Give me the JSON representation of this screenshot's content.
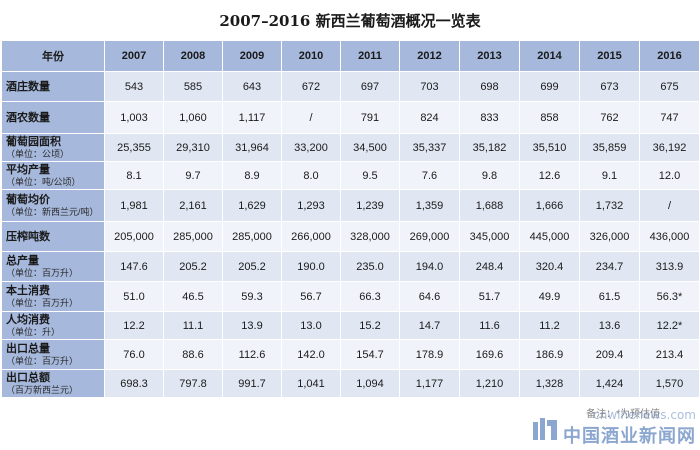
{
  "title": "2007–2016 新西兰葡萄酒概况一览表",
  "header": {
    "corner": "年份",
    "years": [
      "2007",
      "2008",
      "2009",
      "2010",
      "2011",
      "2012",
      "2013",
      "2014",
      "2015",
      "2016"
    ]
  },
  "rows": [
    {
      "label": "酒庄数量",
      "sub": "",
      "values": [
        "543",
        "585",
        "643",
        "672",
        "697",
        "703",
        "698",
        "699",
        "673",
        "675"
      ]
    },
    {
      "label": "酒农数量",
      "sub": "",
      "values": [
        "1,003",
        "1,060",
        "1,117",
        "/",
        "791",
        "824",
        "833",
        "858",
        "762",
        "747"
      ]
    },
    {
      "label": "葡萄园面积",
      "sub": "（单位：公顷）",
      "values": [
        "25,355",
        "29,310",
        "31,964",
        "33,200",
        "34,500",
        "35,337",
        "35,182",
        "35,510",
        "35,859",
        "36,192"
      ]
    },
    {
      "label": "平均产量",
      "sub": "（单位：吨/公顷）",
      "values": [
        "8.1",
        "9.7",
        "8.9",
        "8.0",
        "9.5",
        "7.6",
        "9.8",
        "12.6",
        "9.1",
        "12.0"
      ]
    },
    {
      "label": "葡萄均价",
      "sub": "（单位：新西兰元/吨）",
      "values": [
        "1,981",
        "2,161",
        "1,629",
        "1,293",
        "1,239",
        "1,359",
        "1,688",
        "1,666",
        "1,732",
        "/"
      ]
    },
    {
      "label": "压榨吨数",
      "sub": "",
      "values": [
        "205,000",
        "285,000",
        "285,000",
        "266,000",
        "328,000",
        "269,000",
        "345,000",
        "445,000",
        "326,000",
        "436,000"
      ]
    },
    {
      "label": "总产量",
      "sub": "（单位：百万升）",
      "values": [
        "147.6",
        "205.2",
        "205.2",
        "190.0",
        "235.0",
        "194.0",
        "248.4",
        "320.4",
        "234.7",
        "313.9"
      ]
    },
    {
      "label": "本土消费",
      "sub": "（单位：百万升）",
      "values": [
        "51.0",
        "46.5",
        "59.3",
        "56.7",
        "66.3",
        "64.6",
        "51.7",
        "49.9",
        "61.5",
        "56.3*"
      ]
    },
    {
      "label": "人均消费",
      "sub": "（单位：升）",
      "values": [
        "12.2",
        "11.1",
        "13.9",
        "13.0",
        "15.2",
        "14.7",
        "11.6",
        "11.2",
        "13.6",
        "12.2*"
      ]
    },
    {
      "label": "出口总量",
      "sub": "（单位：百万升）",
      "values": [
        "76.0",
        "88.6",
        "112.6",
        "142.0",
        "154.7",
        "178.9",
        "169.6",
        "186.9",
        "209.4",
        "213.4"
      ]
    },
    {
      "label": "出口总额",
      "sub": "（百万新西兰元）",
      "values": [
        "698.3",
        "797.8",
        "991.7",
        "1,041",
        "1,094",
        "1,177",
        "1,210",
        "1,328",
        "1,424",
        "1,570"
      ]
    }
  ],
  "note": "备注：*为预估值",
  "watermark": {
    "url": "cnwinenews.com",
    "name": "中国酒业新闻网",
    "logo_color": "#2d5fa8"
  }
}
